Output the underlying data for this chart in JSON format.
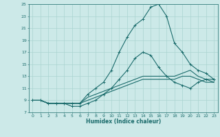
{
  "title": "",
  "xlabel": "Humidex (Indice chaleur)",
  "bg_color": "#cce9e8",
  "grid_color": "#aad4d0",
  "line_color": "#1a6b6b",
  "xlim": [
    -0.5,
    23.5
  ],
  "ylim": [
    7,
    25
  ],
  "xticks": [
    0,
    1,
    2,
    3,
    4,
    5,
    6,
    7,
    8,
    9,
    10,
    11,
    12,
    13,
    14,
    15,
    16,
    17,
    18,
    19,
    20,
    21,
    22,
    23
  ],
  "yticks": [
    7,
    9,
    11,
    13,
    15,
    17,
    19,
    21,
    23,
    25
  ],
  "line1_x": [
    0,
    1,
    2,
    3,
    4,
    5,
    6,
    7,
    8,
    9,
    10,
    11,
    12,
    13,
    14,
    15,
    16,
    17,
    18,
    19,
    20,
    21,
    22,
    23
  ],
  "line1_y": [
    9.0,
    9.0,
    8.5,
    8.5,
    8.5,
    8.0,
    8.0,
    8.5,
    9.0,
    10.0,
    11.0,
    12.5,
    14.0,
    16.0,
    17.0,
    16.5,
    14.5,
    13.0,
    12.0,
    11.5,
    11.0,
    12.0,
    12.5,
    12.5
  ],
  "line2_x": [
    0,
    1,
    2,
    3,
    4,
    5,
    6,
    7,
    8,
    9,
    10,
    11,
    12,
    13,
    14,
    15,
    16,
    17,
    18,
    19,
    20,
    21,
    22,
    23
  ],
  "line2_y": [
    9.0,
    9.0,
    8.5,
    8.5,
    8.5,
    8.5,
    8.5,
    10.0,
    11.0,
    12.0,
    14.0,
    17.0,
    19.5,
    21.5,
    22.5,
    24.5,
    25.0,
    23.0,
    18.5,
    17.0,
    15.0,
    14.0,
    13.5,
    12.5
  ],
  "line3_x": [
    0,
    1,
    2,
    3,
    4,
    5,
    6,
    7,
    8,
    9,
    10,
    11,
    12,
    13,
    14,
    15,
    16,
    17,
    18,
    19,
    20,
    21,
    22,
    23
  ],
  "line3_y": [
    9.0,
    9.0,
    8.5,
    8.5,
    8.5,
    8.5,
    8.5,
    9.5,
    10.0,
    10.5,
    11.0,
    11.5,
    12.0,
    12.5,
    13.0,
    13.0,
    13.0,
    13.0,
    13.0,
    13.5,
    14.0,
    13.0,
    12.5,
    12.0
  ],
  "line4_x": [
    0,
    1,
    2,
    3,
    4,
    5,
    6,
    7,
    8,
    9,
    10,
    11,
    12,
    13,
    14,
    15,
    16,
    17,
    18,
    19,
    20,
    21,
    22,
    23
  ],
  "line4_y": [
    9.0,
    9.0,
    8.5,
    8.5,
    8.5,
    8.5,
    8.5,
    9.0,
    9.5,
    10.0,
    10.5,
    11.0,
    11.5,
    12.0,
    12.5,
    12.5,
    12.5,
    12.5,
    12.5,
    13.0,
    13.0,
    12.5,
    12.0,
    12.0
  ]
}
